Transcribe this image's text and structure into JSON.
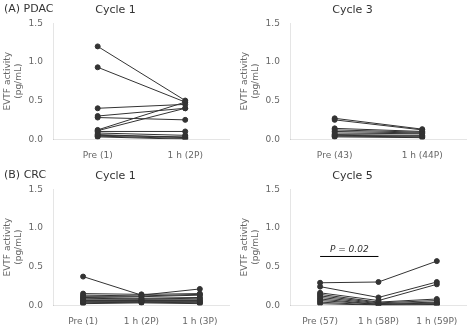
{
  "chart_data": [
    {
      "type": "line",
      "title": "Cycle 1",
      "annotations": [
        {
          "text": "(A) PDAC"
        }
      ],
      "categories": [
        "Pre (1)",
        "1 h (2P)"
      ],
      "ylabel": "EVTF activity\n(pg/mL)",
      "ylim": [
        0,
        1.5
      ],
      "yticks": [
        {
          "value": 0,
          "label": "0.0"
        },
        0.5,
        {
          "value": 1,
          "label": "1.0"
        },
        1.5
      ],
      "grid": false,
      "color": "#333333",
      "marker": "circle",
      "series": [
        {
          "values": [
            1.2,
            0.5
          ]
        },
        {
          "values": [
            0.93,
            0.48
          ]
        },
        {
          "values": [
            0.4,
            0.45
          ]
        },
        {
          "values": [
            0.3,
            0.4
          ]
        },
        {
          "values": [
            0.28,
            0.25
          ]
        },
        {
          "values": [
            0.12,
            0.48
          ]
        },
        {
          "values": [
            0.11,
            0.4
          ]
        },
        {
          "values": [
            0.1,
            0.1
          ]
        },
        {
          "values": [
            0.08,
            0.05
          ]
        },
        {
          "values": [
            0.06,
            0.02
          ]
        },
        {
          "values": [
            0.05,
            0.03
          ]
        },
        {
          "values": [
            0.04,
            0.01
          ]
        },
        {
          "values": [
            0.03,
            0.0
          ]
        }
      ]
    },
    {
      "type": "line",
      "title": "Cycle 3",
      "categories": [
        "Pre (43)",
        "1 h (44P)"
      ],
      "ylabel": "EVTF activity\n(pg/mL)",
      "ylim": [
        0,
        1.5
      ],
      "yticks": [
        {
          "value": 0,
          "label": "0.0"
        },
        0.5,
        {
          "value": 1,
          "label": "1.0"
        },
        1.5
      ],
      "grid": false,
      "color": "#333333",
      "marker": "circle",
      "series": [
        {
          "values": [
            0.27,
            0.13
          ]
        },
        {
          "values": [
            0.25,
            0.12
          ]
        },
        {
          "values": [
            0.14,
            0.1
          ]
        },
        {
          "values": [
            0.12,
            0.09
          ]
        },
        {
          "values": [
            0.1,
            0.08
          ]
        },
        {
          "values": [
            0.08,
            0.07
          ]
        },
        {
          "values": [
            0.06,
            0.05
          ]
        },
        {
          "values": [
            0.05,
            0.04
          ]
        },
        {
          "values": [
            0.04,
            0.03
          ]
        },
        {
          "values": [
            0.03,
            0.02
          ]
        }
      ]
    },
    {
      "type": "line",
      "title": "Cycle 1",
      "annotations": [
        {
          "text": "(B) CRC"
        }
      ],
      "categories": [
        "Pre (1)",
        "1 h (2P)",
        "1 h (3P)"
      ],
      "ylabel": "EVTF activity\n(pg/mL)",
      "ylim": [
        0,
        1.5
      ],
      "yticks": [
        {
          "value": 0,
          "label": "0.0"
        },
        0.5,
        {
          "value": 1,
          "label": "1.0"
        },
        1.5
      ],
      "grid": false,
      "color": "#333333",
      "marker": "circle",
      "series": [
        {
          "values": [
            0.37,
            0.13,
            0.21
          ]
        },
        {
          "values": [
            0.15,
            0.14,
            0.15
          ]
        },
        {
          "values": [
            0.13,
            0.12,
            0.14
          ]
        },
        {
          "values": [
            0.11,
            0.11,
            0.13
          ]
        },
        {
          "values": [
            0.1,
            0.09,
            0.1
          ]
        },
        {
          "values": [
            0.09,
            0.08,
            0.09
          ]
        },
        {
          "values": [
            0.07,
            0.07,
            0.07
          ]
        },
        {
          "values": [
            0.06,
            0.06,
            0.06
          ]
        },
        {
          "values": [
            0.05,
            0.05,
            0.05
          ]
        },
        {
          "values": [
            0.04,
            0.04,
            0.04
          ]
        },
        {
          "values": [
            0.03,
            0.04,
            0.03
          ]
        },
        {
          "values": [
            0.02,
            0.03,
            0.02
          ]
        }
      ]
    },
    {
      "type": "line",
      "title": "Cycle 5",
      "annotations": [
        {
          "text": "P = 0.02",
          "x": [
            "Pre (57)",
            "1 h (58P)"
          ],
          "y": 0.63
        }
      ],
      "categories": [
        "Pre (57)",
        "1 h (58P)",
        "1 h (59P)"
      ],
      "ylabel": "EVTF activity\n(pg/mL)",
      "ylim": [
        0,
        1.5
      ],
      "yticks": [
        {
          "value": 0,
          "label": "0.0"
        },
        0.5,
        {
          "value": 1,
          "label": "1.0"
        },
        1.5
      ],
      "grid": false,
      "color": "#333333",
      "marker": "circle",
      "series": [
        {
          "values": [
            0.29,
            0.3,
            0.57
          ]
        },
        {
          "values": [
            0.24,
            0.1,
            0.3
          ]
        },
        {
          "values": [
            0.16,
            0.06,
            0.27
          ]
        },
        {
          "values": [
            0.14,
            0.04,
            0.08
          ]
        },
        {
          "values": [
            0.12,
            0.03,
            0.06
          ]
        },
        {
          "values": [
            0.1,
            0.02,
            0.04
          ]
        },
        {
          "values": [
            0.08,
            0.01,
            0.03
          ]
        },
        {
          "values": [
            0.06,
            0.01,
            0.02
          ]
        },
        {
          "values": [
            0.04,
            0.0,
            0.01
          ]
        },
        {
          "values": [
            0.02,
            0.0,
            0.0
          ]
        }
      ]
    }
  ]
}
